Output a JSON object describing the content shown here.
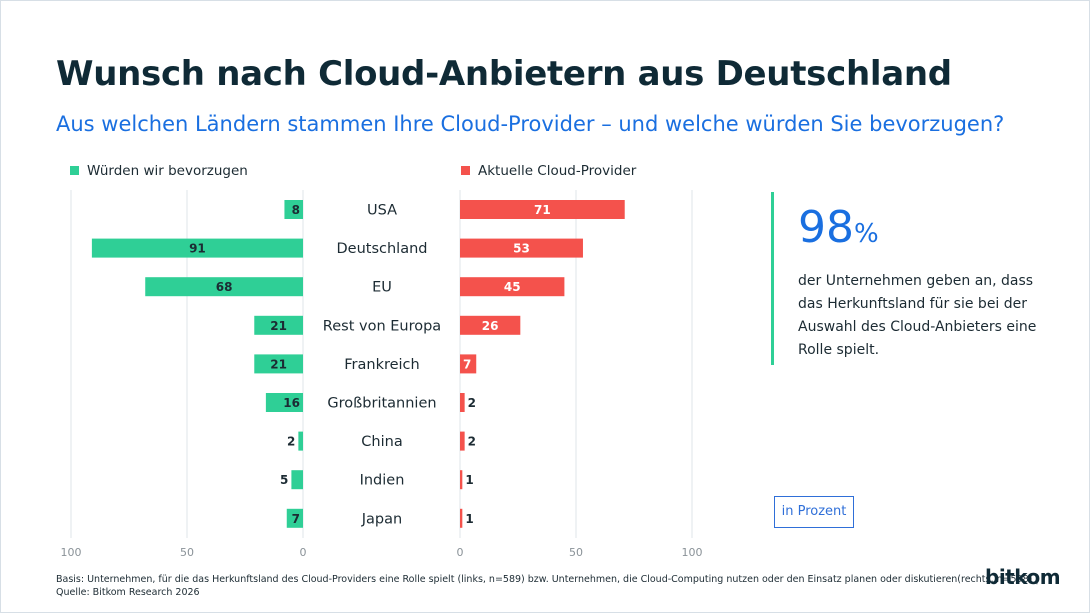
{
  "title": "Wunsch nach Cloud-Anbietern aus Deutschland",
  "subtitle": "Aus welchen Ländern stammen Ihre Cloud-Provider – und welche würden Sie bevorzugen?",
  "colors": {
    "preferred": "#2fcf96",
    "current": "#f4524c",
    "accent": "#1a6fe0",
    "grid": "#dfe4e8"
  },
  "chart_data": {
    "type": "bar",
    "orientation": "horizontal-butterfly",
    "categories": [
      "USA",
      "Deutschland",
      "EU",
      "Rest von Europa",
      "Frankreich",
      "Großbritannien",
      "China",
      "Indien",
      "Japan"
    ],
    "series": [
      {
        "name": "Würden wir bevorzugen",
        "side": "left",
        "color": "#2fcf96",
        "values": [
          8,
          91,
          68,
          21,
          21,
          16,
          2,
          5,
          7
        ]
      },
      {
        "name": "Aktuelle Cloud-Provider",
        "side": "right",
        "color": "#f4524c",
        "values": [
          71,
          53,
          45,
          26,
          7,
          2,
          2,
          1,
          1
        ]
      }
    ],
    "left_axis": {
      "ticks": [
        "100",
        "50",
        "0"
      ],
      "range": [
        100,
        0
      ]
    },
    "right_axis": {
      "ticks": [
        "0",
        "50",
        "100"
      ],
      "range": [
        0,
        100
      ]
    },
    "unit": "in Prozent"
  },
  "callout": {
    "value": "98",
    "unit": "%",
    "text": "der Unternehmen geben an, dass das Herkunftsland für sie bei der Auswahl des Cloud-Anbieters eine Rolle spielt."
  },
  "footnote": {
    "line1": "Basis: Unternehmen, für die das Herkunftsland des Cloud-Providers eine Rolle spielt (links, n=589) bzw. Unternehmen, die Cloud-Computing nutzen oder den Einsatz planen oder diskutieren(rechts, n=598) |",
    "line2": "Quelle: Bitkom Research 2026"
  },
  "logo": "bitkom"
}
